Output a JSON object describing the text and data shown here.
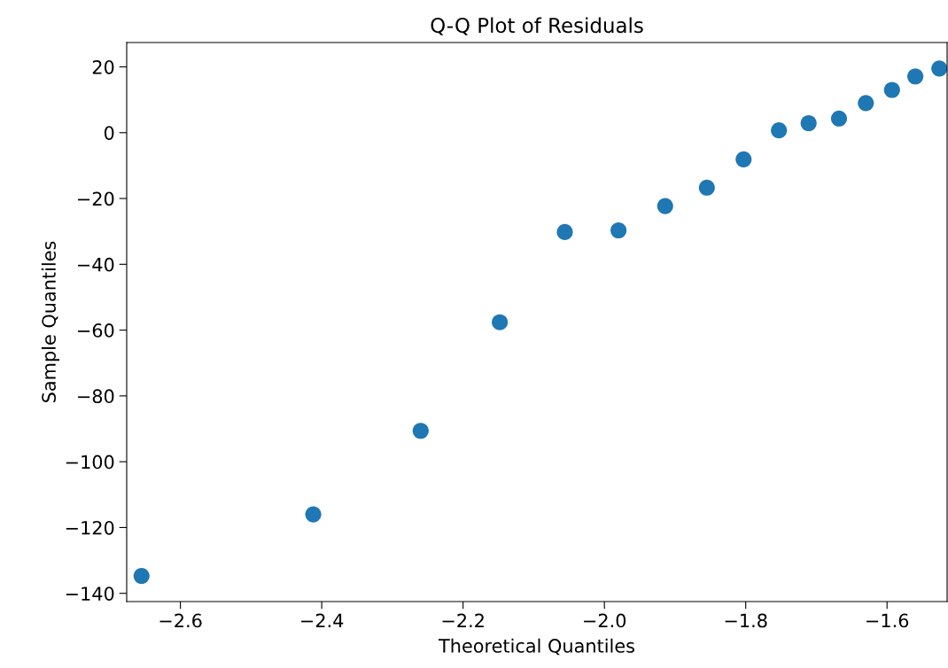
{
  "chart_data": {
    "type": "scatter",
    "title": "Q-Q Plot of Residuals",
    "xlabel": "Theoretical Quantiles",
    "ylabel": "Sample Quantiles",
    "x": [
      -2.655,
      -2.412,
      -2.26,
      -2.148,
      -2.056,
      -1.98,
      -1.914,
      -1.855,
      -1.803,
      -1.753,
      -1.711,
      -1.668,
      -1.63,
      -1.593,
      -1.56,
      -1.526
    ],
    "series": [
      {
        "color": "#1f77b4",
        "values": [
          -134.7,
          -116,
          -90.6,
          -57.6,
          -30.2,
          -29.7,
          -22.3,
          -16.7,
          -8.1,
          0.7,
          2.9,
          4.3,
          9.0,
          13.0,
          17.1,
          19.5
        ]
      }
    ],
    "xlim": [
      -2.676,
      -1.515
    ],
    "ylim": [
      -142.5,
      27.4
    ],
    "xticks": [
      {
        "value": -2.6,
        "label": "−2.6"
      },
      {
        "value": -2.4,
        "label": "−2.4"
      },
      {
        "value": -2.2,
        "label": "−2.2"
      },
      {
        "value": -2.0,
        "label": "−2.0"
      },
      {
        "value": -1.8,
        "label": "−1.8"
      },
      {
        "value": -1.6,
        "label": "−1.6"
      }
    ],
    "yticks": [
      {
        "value": -140,
        "label": "−140"
      },
      {
        "value": -120,
        "label": "−120"
      },
      {
        "value": -100,
        "label": "−100"
      },
      {
        "value": -80,
        "label": "−80"
      },
      {
        "value": -60,
        "label": "−60"
      },
      {
        "value": -40,
        "label": "−40"
      },
      {
        "value": -20,
        "label": "−20"
      },
      0,
      20
    ],
    "marker": "circle",
    "grid": false
  }
}
